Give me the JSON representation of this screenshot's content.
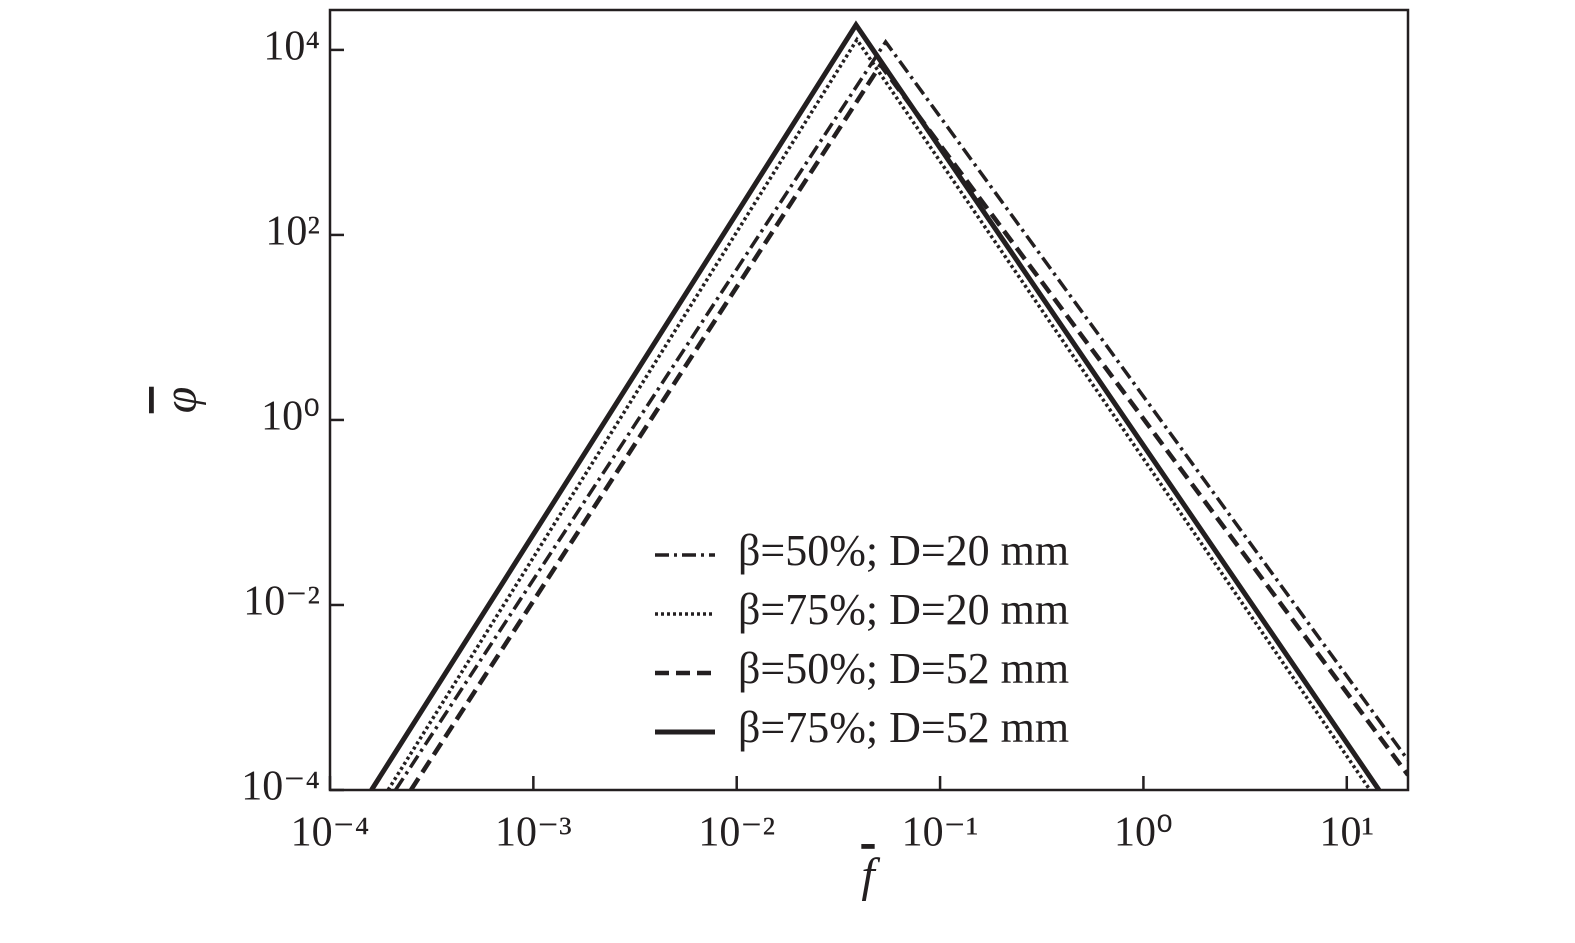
{
  "chart_data": {
    "type": "line",
    "xlabel": "f",
    "ylabel": "φ",
    "xlog": true,
    "ylog": true,
    "grid": false,
    "legend": "lower center",
    "xlim": [
      0.0001,
      20
    ],
    "ylim": [
      0.0001,
      27000
    ],
    "xticks": [
      {
        "value": 0.0001,
        "label": "10⁻⁴"
      },
      {
        "value": 0.001,
        "label": "10⁻³"
      },
      {
        "value": 0.01,
        "label": "10⁻²"
      },
      {
        "value": 0.1,
        "label": "10⁻¹"
      },
      {
        "value": 1,
        "label": "10⁰"
      },
      {
        "value": 10,
        "label": "10¹"
      }
    ],
    "yticks": [
      {
        "value": 0.0001,
        "label": "10⁻⁴"
      },
      {
        "value": 0.01,
        "label": "10⁻²"
      },
      {
        "value": 1,
        "label": "10⁰"
      },
      {
        "value": 100,
        "label": "10²"
      },
      {
        "value": 10000,
        "label": "10⁴"
      }
    ],
    "series": [
      {
        "name": "β=50%; D=20 mm",
        "color": "#231f20",
        "style": "dashdot",
        "x": [
          0.00021,
          0.054,
          20
        ],
        "values": [
          0.0001,
          12200,
          0.00021
        ]
      },
      {
        "name": "β=75%; D=20 mm",
        "color": "#231f20",
        "style": "dotted",
        "x": [
          0.000193,
          0.039,
          13
        ],
        "values": [
          0.0001,
          12900,
          0.0001
        ]
      },
      {
        "name": "β=50%; D=52 mm",
        "color": "#231f20",
        "style": "dashed",
        "x": [
          0.00025,
          0.051,
          20
        ],
        "values": [
          0.0001,
          6900,
          0.000145
        ]
      },
      {
        "name": "β=75%; D=52 mm",
        "color": "#231f20",
        "style": "solid",
        "x": [
          0.00016,
          0.0386,
          14.4
        ],
        "values": [
          0.0001,
          18600,
          0.0001
        ]
      }
    ]
  }
}
